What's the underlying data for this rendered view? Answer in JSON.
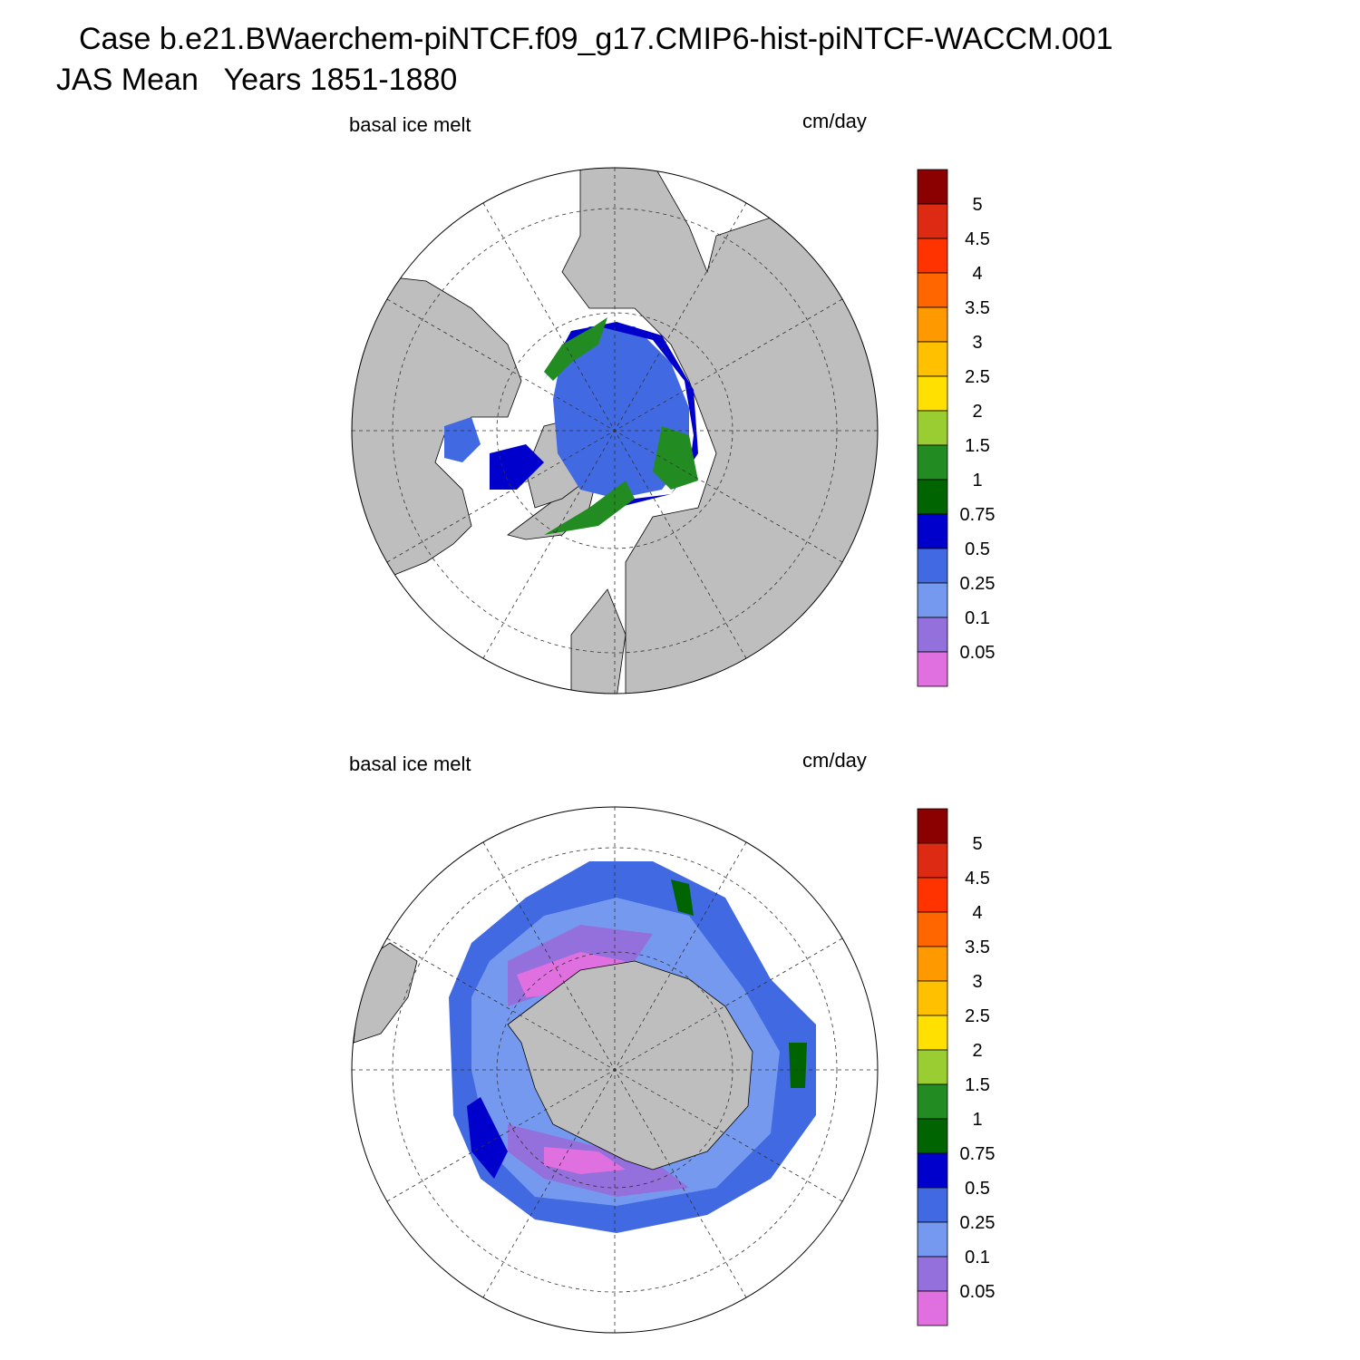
{
  "header": {
    "title_lines": [
      "Case b.e21.BWaerchem-piNTCF.f09_g17.CMIP6-hist-piNTCF-WACCM.001",
      "JAS Mean   Years 1851-1880"
    ]
  },
  "panels": [
    {
      "left_label": "basal ice melt",
      "right_label": "cm/day"
    },
    {
      "left_label": "basal ice melt",
      "right_label": "cm/day"
    }
  ],
  "colorbar": {
    "levels": [
      5,
      4.5,
      4,
      3.5,
      3,
      2.5,
      2,
      1.5,
      1,
      0.75,
      0.5,
      0.25,
      0.1,
      0.05
    ],
    "colors": [
      "#8b0000",
      "#dd2a12",
      "#ff3300",
      "#ff6600",
      "#ff9900",
      "#ffc000",
      "#ffe000",
      "#9acd32",
      "#228b22",
      "#006400",
      "#0000cd",
      "#4169e1",
      "#7699f0",
      "#9370db",
      "#e070e0"
    ]
  }
}
